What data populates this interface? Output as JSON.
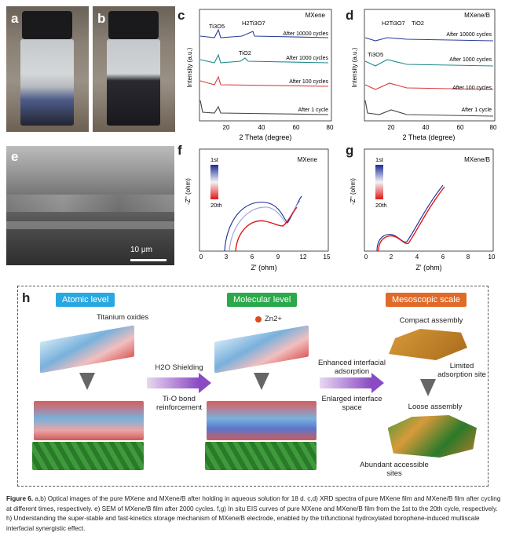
{
  "panels": {
    "a": "a",
    "b": "b",
    "c": "c",
    "d": "d",
    "e": "e",
    "f": "f",
    "g": "g",
    "h": "h"
  },
  "panel_c": {
    "title": "MXene",
    "ylabel": "Intensity (a.u.)",
    "xlabel": "2 Theta (degree)",
    "xticks": [
      "20",
      "40",
      "60",
      "80"
    ],
    "peak_labels": [
      "Ti3O5",
      "H2Ti3O7",
      "TiO2"
    ],
    "curve_labels": [
      "After 10000 cycles",
      "After 1000 cycles",
      "After 100 cycles",
      "After 1 cycle"
    ]
  },
  "panel_d": {
    "title": "MXene/B",
    "ylabel": "Intensity (a.u.)",
    "xlabel": "2 Theta (degree)",
    "xticks": [
      "20",
      "40",
      "60",
      "80"
    ],
    "peak_labels": [
      "H2Ti3O7",
      "TiO2",
      "Ti3O5"
    ],
    "curve_labels": [
      "After 10000 cycles",
      "After 1000 cycles",
      "After 100 cycles",
      "After 1 cycle"
    ]
  },
  "panel_e": {
    "scale_bar": "10 μm"
  },
  "panel_f": {
    "title": "MXene",
    "ylabel": "-Z'' (ohm)",
    "xlabel": "Z' (ohm)",
    "xticks": [
      "0",
      "3",
      "6",
      "9",
      "12",
      "15"
    ],
    "colorbar": [
      "1st",
      "20th"
    ]
  },
  "panel_g": {
    "title": "MXene/B",
    "ylabel": "-Z'' (ohm)",
    "xlabel": "Z' (ohm)",
    "xticks": [
      "0",
      "2",
      "4",
      "6",
      "8",
      "10"
    ],
    "colorbar": [
      "1st",
      "20th"
    ]
  },
  "panel_h": {
    "headers": [
      "Atomic level",
      "Molecular level",
      "Mesoscopic scale"
    ],
    "header_colors": [
      "#29a8e0",
      "#2aa84a",
      "#e06a28"
    ],
    "texts": {
      "titanium_oxides": "Titanium oxides",
      "h2o_shielding": "H2O Shielding",
      "tio_bond": "Ti-O bond reinforcement",
      "zn": "Zn2+",
      "enhanced": "Enhanced interfacial adsorption",
      "enlarged": "Enlarged interface space",
      "compact": "Compact assembly",
      "limited": "Limited adsorption site",
      "loose": "Loose assembly",
      "abundant": "Abundant accessible sites"
    }
  },
  "chart_data": [
    {
      "type": "line",
      "panel": "c",
      "title": "MXene",
      "xlabel": "2 Theta (degree)",
      "ylabel": "Intensity (a.u.)",
      "xlim": [
        5,
        80
      ],
      "series": [
        {
          "name": "After 10000 cycles",
          "color": "#2a3f9c"
        },
        {
          "name": "After 1000 cycles",
          "color": "#1e8a88"
        },
        {
          "name": "After 100 cycles",
          "color": "#d83a3a"
        },
        {
          "name": "After 1 cycle",
          "color": "#444444"
        }
      ]
    },
    {
      "type": "line",
      "panel": "d",
      "title": "MXene/B",
      "xlabel": "2 Theta (degree)",
      "ylabel": "Intensity (a.u.)",
      "xlim": [
        5,
        80
      ],
      "series": [
        {
          "name": "After 10000 cycles",
          "color": "#2a3f9c"
        },
        {
          "name": "After 1000 cycles",
          "color": "#1e8a88"
        },
        {
          "name": "After 100 cycles",
          "color": "#d83a3a"
        },
        {
          "name": "After 1 cycle",
          "color": "#444444"
        }
      ]
    },
    {
      "type": "line",
      "panel": "f",
      "title": "MXene",
      "xlabel": "Z' (ohm)",
      "ylabel": "-Z'' (ohm)",
      "xlim": [
        0,
        15
      ]
    },
    {
      "type": "line",
      "panel": "g",
      "title": "MXene/B",
      "xlabel": "Z' (ohm)",
      "ylabel": "-Z'' (ohm)",
      "xlim": [
        0,
        10
      ]
    }
  ],
  "caption": {
    "label": "Figure 6.",
    "text": "a,b) Optical images of the pure MXene and MXene/B after holding in aqueous solution for 18 d. c,d) XRD spectra of pure MXene film and MXene/B film after cycling at different times, respectively. e) SEM of MXene/B film after 2000 cycles. f,g) In situ EIS curves of pure MXene and MXene/B film from the 1st to the 20th cycle, respectively. h) Understanding the super-stable and fast-kinetics storage mechanism of MXene/B electrode, enabled by the trifunctional hydroxylated borophene-induced multiscale interfacial synergistic effect."
  }
}
